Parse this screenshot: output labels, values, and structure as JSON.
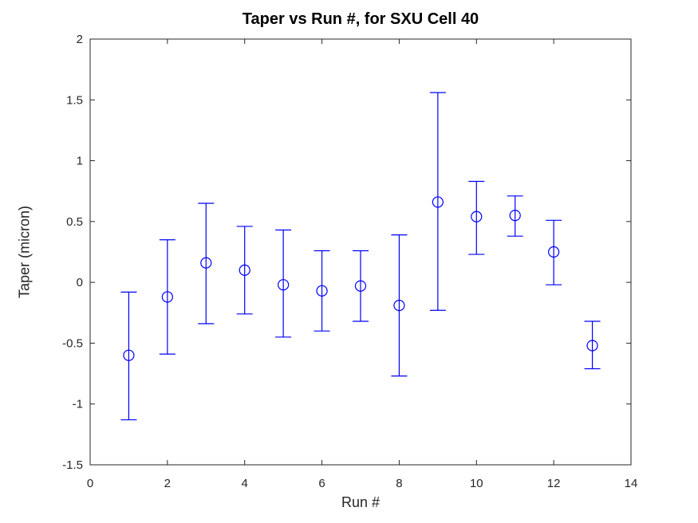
{
  "figure": {
    "background": "#ffffff"
  },
  "chart_data": {
    "type": "scatter-errorbar",
    "title": "Taper vs Run #, for SXU Cell 40",
    "xlabel": "Run #",
    "ylabel": "Taper (micron)",
    "xlim": [
      0,
      14
    ],
    "ylim": [
      -1.5,
      2
    ],
    "xticks": [
      0,
      2,
      4,
      6,
      8,
      10,
      12,
      14
    ],
    "xtick_labels": [
      "0",
      "2",
      "4",
      "6",
      "8",
      "10",
      "12",
      "14"
    ],
    "yticks": [
      -1.5,
      -1,
      -0.5,
      0,
      0.5,
      1,
      1.5,
      2
    ],
    "ytick_labels": [
      "-1.5",
      "-1",
      "-0.5",
      "0",
      "0.5",
      "1",
      "1.5",
      "2"
    ],
    "grid": false,
    "legend_position": "none",
    "axis_color": "#262626",
    "title_color": "#000000",
    "series": [
      {
        "name": "taper-errorbar-series",
        "color": "#0000ff",
        "marker": "open-circle",
        "x": [
          1,
          2,
          3,
          4,
          5,
          6,
          7,
          8,
          9,
          10,
          11,
          12,
          13
        ],
        "y": [
          -0.6,
          -0.12,
          0.16,
          0.1,
          -0.02,
          -0.07,
          -0.03,
          -0.19,
          0.66,
          0.54,
          0.55,
          0.25,
          -0.52
        ],
        "y_upper": [
          -0.08,
          0.35,
          0.65,
          0.46,
          0.43,
          0.26,
          0.26,
          0.39,
          1.56,
          0.83,
          0.71,
          0.51,
          -0.32
        ],
        "y_lower": [
          -1.13,
          -0.59,
          -0.34,
          -0.26,
          -0.45,
          -0.4,
          -0.32,
          -0.77,
          -0.23,
          0.23,
          0.38,
          -0.02,
          -0.71
        ]
      }
    ]
  }
}
